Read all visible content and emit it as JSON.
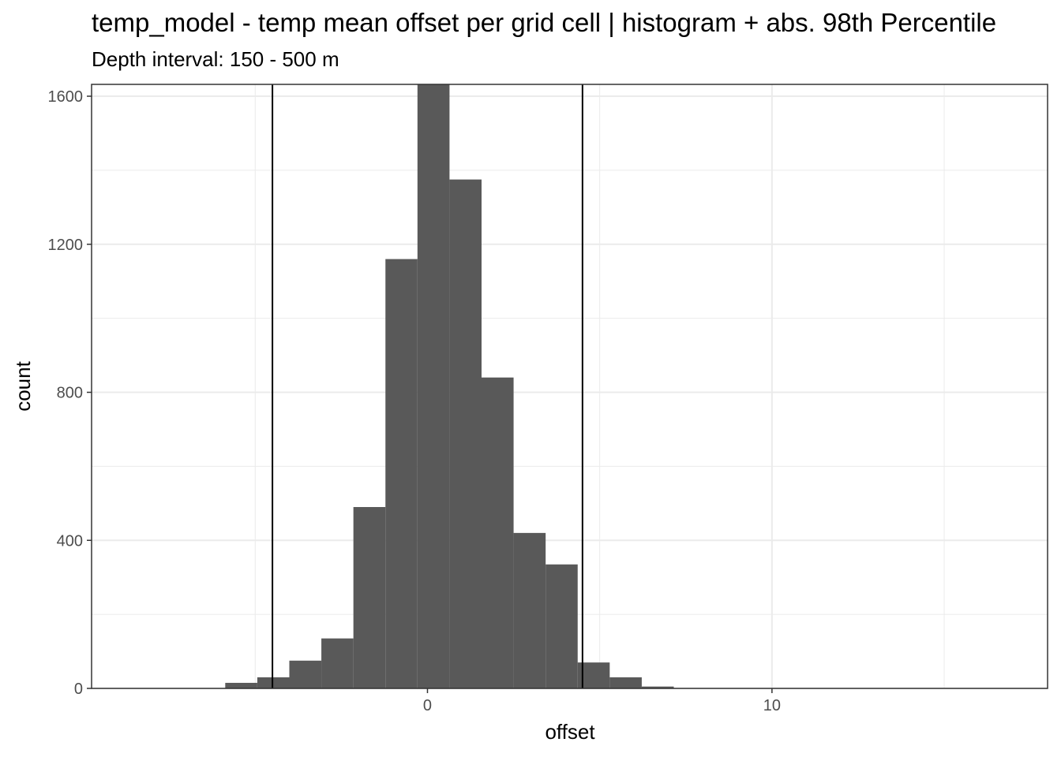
{
  "chart_data": {
    "type": "bar",
    "title": "temp_model  -  temp mean offset per grid cell | histogram + abs. 98th Percentile",
    "subtitle": "Depth interval: 150 - 500 m",
    "xlabel": "offset",
    "ylabel": "count",
    "xlim": [
      -9.75,
      18.0
    ],
    "ylim": [
      0,
      1632
    ],
    "x_ticks": [
      0,
      10
    ],
    "x_minor_ticks": [
      -5,
      5,
      15
    ],
    "y_ticks": [
      0,
      400,
      800,
      1200,
      1600
    ],
    "y_minor_ticks": [
      200,
      600,
      1000,
      1400
    ],
    "grid": true,
    "bin_width": 0.93,
    "bins": [
      {
        "x": -5.87,
        "count": 15
      },
      {
        "x": -4.94,
        "count": 30
      },
      {
        "x": -4.01,
        "count": 75
      },
      {
        "x": -3.08,
        "count": 135
      },
      {
        "x": -2.15,
        "count": 490
      },
      {
        "x": -1.22,
        "count": 1160
      },
      {
        "x": -0.29,
        "count": 1640
      },
      {
        "x": 0.64,
        "count": 1375
      },
      {
        "x": 1.57,
        "count": 840
      },
      {
        "x": 2.5,
        "count": 420
      },
      {
        "x": 3.43,
        "count": 335
      },
      {
        "x": 4.36,
        "count": 70
      },
      {
        "x": 5.29,
        "count": 30
      },
      {
        "x": 6.22,
        "count": 5
      }
    ],
    "vlines": [
      -4.5,
      4.5
    ],
    "colors": {
      "bar": "#595959",
      "vline": "#000000",
      "grid": "#ebebeb"
    }
  }
}
